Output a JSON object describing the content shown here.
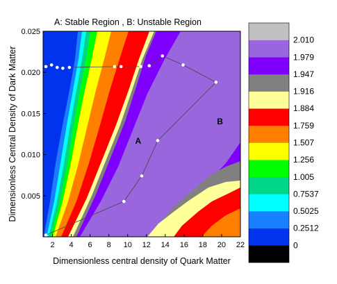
{
  "chart_data": {
    "type": "contour",
    "title": "A: Stable Region , B: Unstable Region",
    "xlabel": "Dimensionless central density of Quark Matter",
    "ylabel": "Dimensionless Central Density of Dark Matter",
    "xlim": [
      1,
      22
    ],
    "ylim": [
      0,
      0.025
    ],
    "xticks": [
      2,
      4,
      6,
      8,
      10,
      12,
      14,
      16,
      18,
      20,
      22
    ],
    "xtick_labels": [
      "2",
      "4",
      "6",
      "8",
      "10",
      "12",
      "14",
      "16",
      "18",
      "20",
      "22"
    ],
    "yticks": [
      0.005,
      0.01,
      0.015,
      0.02,
      0.025
    ],
    "ytick_labels": [
      "0.005",
      "0.010",
      "0.015",
      "0.020",
      "0.025"
    ],
    "colorbar": {
      "labels": [
        "0",
        "0.2512",
        "0.5025",
        "0.7537",
        "1.005",
        "1.256",
        "1.507",
        "1.759",
        "1.884",
        "1.916",
        "1.947",
        "1.979",
        "2.010"
      ],
      "colors": [
        "#000000",
        "#0033ee",
        "#1a7fff",
        "#00ffff",
        "#00d68a",
        "#00ff00",
        "#ffff00",
        "#ff8000",
        "#ff0000",
        "#ffff99",
        "#808080",
        "#8000ff",
        "#9966dd",
        "#c0c0c0"
      ]
    },
    "region_labels": [
      {
        "text": "A",
        "x": 10.8,
        "y": 0.0113
      },
      {
        "text": "B",
        "x": 19.5,
        "y": 0.0137
      }
    ],
    "marked_path": [
      {
        "x": 1.3,
        "y": 0.0207
      },
      {
        "x": 1.9,
        "y": 0.0209
      },
      {
        "x": 2.5,
        "y": 0.0206
      },
      {
        "x": 3.1,
        "y": 0.0205
      },
      {
        "x": 3.8,
        "y": 0.0206
      },
      {
        "x": 8.6,
        "y": 0.0207
      },
      {
        "x": 9.3,
        "y": 0.0207
      },
      {
        "x": 11.4,
        "y": 0.0207
      },
      {
        "x": 12.3,
        "y": 0.0208
      },
      {
        "x": 13.7,
        "y": 0.022
      },
      {
        "x": 15.9,
        "y": 0.0209
      },
      {
        "x": 19.4,
        "y": 0.0188
      },
      {
        "x": 13.2,
        "y": 0.0117
      },
      {
        "x": 11.5,
        "y": 0.0074
      },
      {
        "x": 9.6,
        "y": 0.0043
      },
      {
        "x": 1.3,
        "y": 0.0002
      }
    ]
  }
}
